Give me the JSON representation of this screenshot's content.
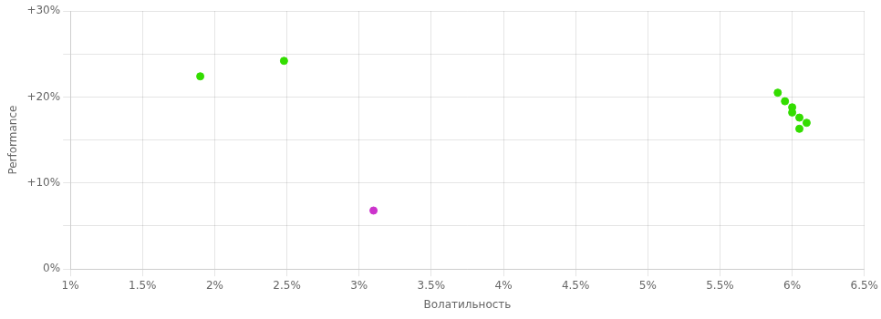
{
  "chart_data": {
    "type": "scatter",
    "x_label": "Волатильность",
    "y_label": "Performance",
    "xlim": [
      0.01,
      0.065
    ],
    "ylim": [
      0.0,
      0.3
    ],
    "xticks": [
      {
        "value": 0.01,
        "label": "1%"
      },
      {
        "value": 0.015,
        "label": "1.5%"
      },
      {
        "value": 0.02,
        "label": "2%"
      },
      {
        "value": 0.025,
        "label": "2.5%"
      },
      {
        "value": 0.03,
        "label": "3%"
      },
      {
        "value": 0.035,
        "label": "3.5%"
      },
      {
        "value": 0.04,
        "label": "4%"
      },
      {
        "value": 0.045,
        "label": "4.5%"
      },
      {
        "value": 0.05,
        "label": "5%"
      },
      {
        "value": 0.055,
        "label": "5.5%"
      },
      {
        "value": 0.06,
        "label": "6%"
      },
      {
        "value": 0.065,
        "label": "6.5%"
      }
    ],
    "yticks": [
      {
        "value": 0.0,
        "label": "0%"
      },
      {
        "value": 0.05,
        "label": null
      },
      {
        "value": 0.1,
        "label": "+10%"
      },
      {
        "value": 0.15,
        "label": null
      },
      {
        "value": 0.2,
        "label": "+20%"
      },
      {
        "value": 0.25,
        "label": null
      },
      {
        "value": 0.3,
        "label": "+30%"
      }
    ],
    "grid": true,
    "series": [
      {
        "color": "#33dd00",
        "x": [
          0.019,
          0.0248,
          0.059,
          0.0595,
          0.06,
          0.06,
          0.0605,
          0.061,
          0.0605
        ],
        "values": [
          0.224,
          0.242,
          0.205,
          0.195,
          0.188,
          0.182,
          0.176,
          0.17,
          0.163
        ]
      },
      {
        "color": "#cc33cc",
        "x": [
          0.031
        ],
        "values": [
          0.068
        ]
      }
    ]
  }
}
